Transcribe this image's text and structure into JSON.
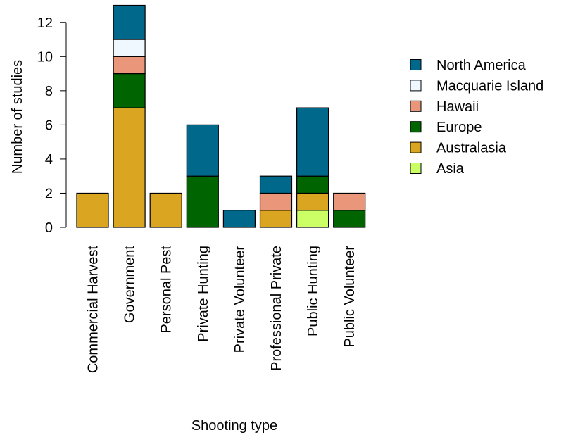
{
  "chart_data": {
    "type": "bar",
    "stacked": true,
    "title": "",
    "xlabel": "Shooting type",
    "ylabel": "Number of studies",
    "ylim": [
      0,
      13
    ],
    "yticks": [
      0,
      2,
      4,
      6,
      8,
      10,
      12
    ],
    "legend_position": "right",
    "categories": [
      "Commercial Harvest",
      "Government",
      "Personal Pest",
      "Private Hunting",
      "Private Volunteer",
      "Professional Private",
      "Public Hunting",
      "Public Volunteer"
    ],
    "series": [
      {
        "name": "Asia",
        "color": "#ccff66",
        "values": [
          0,
          0,
          0,
          0,
          0,
          0,
          1,
          0
        ]
      },
      {
        "name": "Australasia",
        "color": "#daa520",
        "values": [
          2,
          7,
          2,
          0,
          0,
          1,
          1,
          0
        ]
      },
      {
        "name": "Europe",
        "color": "#006400",
        "values": [
          0,
          2,
          0,
          3,
          0,
          0,
          1,
          1
        ]
      },
      {
        "name": "Hawaii",
        "color": "#e9967a",
        "values": [
          0,
          1,
          0,
          0,
          0,
          1,
          0,
          1
        ]
      },
      {
        "name": "Macquarie Island",
        "color": "#f0f8ff",
        "values": [
          0,
          1,
          0,
          0,
          0,
          0,
          0,
          0
        ]
      },
      {
        "name": "North America",
        "color": "#00688b",
        "values": [
          0,
          2,
          0,
          3,
          1,
          1,
          4,
          0
        ]
      }
    ],
    "legend_order": [
      "North America",
      "Macquarie Island",
      "Hawaii",
      "Europe",
      "Australasia",
      "Asia"
    ]
  }
}
